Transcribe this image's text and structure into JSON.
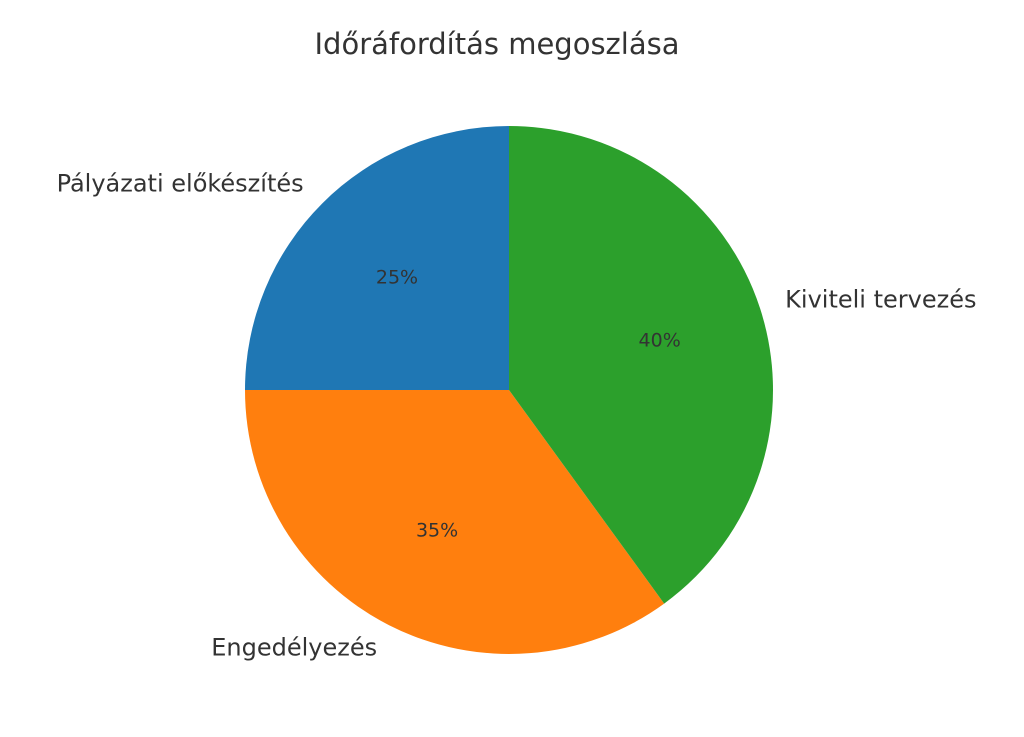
{
  "chart_data": {
    "type": "pie",
    "title": "Időráfordítás megoszlása",
    "categories": [
      "Pályázati előkészítés",
      "Engedélyezés",
      "Kiviteli tervezés"
    ],
    "values": [
      25,
      35,
      40
    ],
    "value_labels": [
      "25%",
      "35%",
      "40%"
    ],
    "colors": [
      "#1f77b4",
      "#ff7f0e",
      "#2ca02c"
    ]
  }
}
